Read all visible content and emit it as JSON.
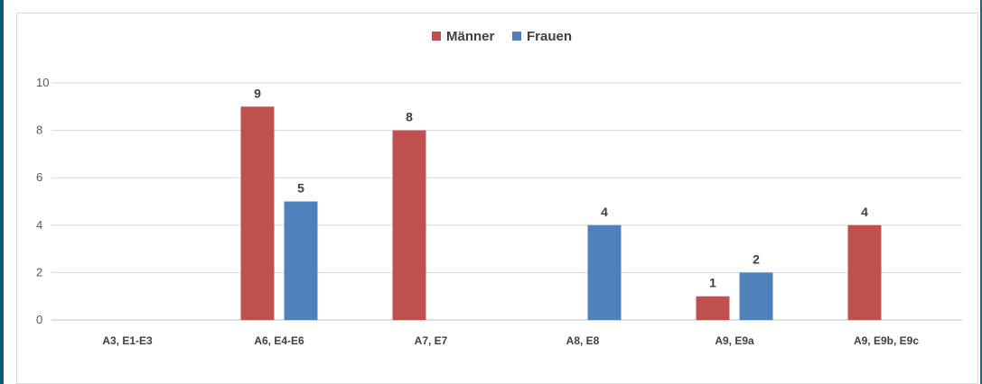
{
  "chart_data": {
    "type": "bar",
    "categories": [
      "A3, E1-E3",
      "A6, E4-E6",
      "A7, E7",
      "A8, E8",
      "A9, E9a",
      "A9, E9b, E9c"
    ],
    "series": [
      {
        "name": "Männer",
        "color": "#c0504d",
        "values": [
          0,
          9,
          8,
          0,
          1,
          4
        ]
      },
      {
        "name": "Frauen",
        "color": "#4f81bd",
        "values": [
          0,
          5,
          0,
          4,
          2,
          0
        ]
      }
    ],
    "ylim": [
      0,
      10
    ],
    "yticks": [
      0,
      2,
      4,
      6,
      8,
      10
    ],
    "grid": true,
    "legend": "top-center",
    "data_labels": true
  }
}
